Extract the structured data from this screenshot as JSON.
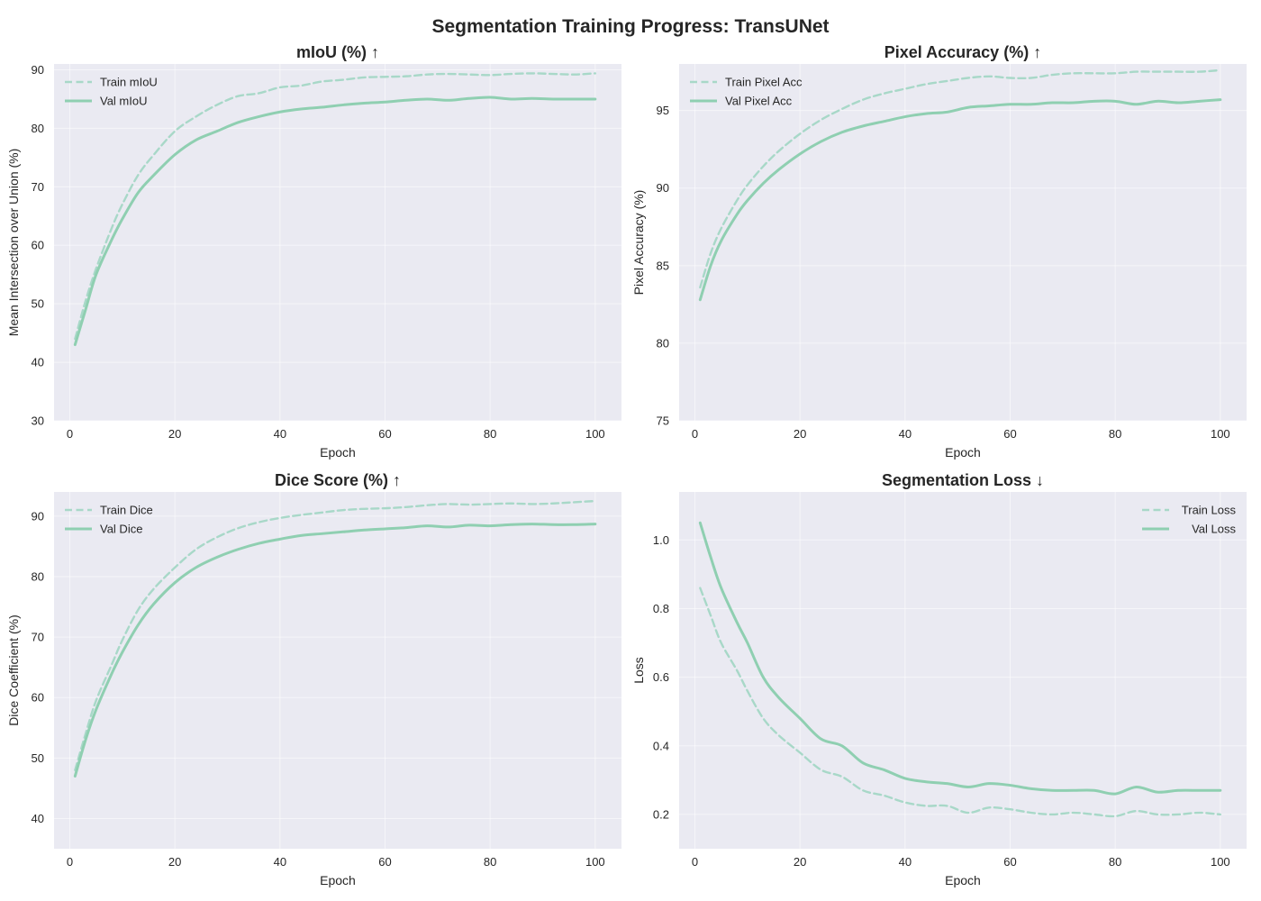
{
  "figure": {
    "suptitle": "Segmentation Training Progress: TransUNet"
  },
  "colors": {
    "train": "#a8d8c8",
    "val": "#8fcfb1",
    "plot_background": "#eaeaf2",
    "text": "#262626"
  },
  "chart_data": [
    {
      "type": "line",
      "title": "mIoU (%) ↑",
      "xlabel": "Epoch",
      "ylabel": "Mean Intersection over Union (%)",
      "xlim": [
        -3,
        105
      ],
      "ylim": [
        30,
        91
      ],
      "xticks": [
        0,
        20,
        40,
        60,
        80,
        100
      ],
      "yticks": [
        30,
        40,
        50,
        60,
        70,
        80,
        90
      ],
      "grid": true,
      "legend": "upper-left",
      "x": [
        1,
        3,
        5,
        8,
        10,
        13,
        16,
        20,
        24,
        28,
        32,
        36,
        40,
        44,
        48,
        52,
        56,
        60,
        64,
        68,
        72,
        76,
        80,
        84,
        88,
        92,
        96,
        100
      ],
      "series": [
        {
          "name": "Train mIoU",
          "style": "dashed",
          "values": [
            44,
            50.5,
            56,
            63,
            67,
            72,
            75.5,
            79.5,
            82,
            84,
            85.5,
            86,
            87,
            87.3,
            88,
            88.3,
            88.7,
            88.8,
            88.9,
            89.2,
            89.3,
            89.2,
            89.1,
            89.3,
            89.4,
            89.3,
            89.2,
            89.4
          ]
        },
        {
          "name": "Val mIoU",
          "style": "solid",
          "values": [
            43,
            49,
            55,
            61,
            64.5,
            69,
            72,
            75.5,
            78,
            79.5,
            81,
            82,
            82.8,
            83.3,
            83.6,
            84,
            84.3,
            84.5,
            84.8,
            85,
            84.8,
            85.1,
            85.3,
            85,
            85.1,
            85,
            85,
            85
          ]
        }
      ]
    },
    {
      "type": "line",
      "title": "Pixel Accuracy (%) ↑",
      "xlabel": "Epoch",
      "ylabel": "Pixel Accuracy (%)",
      "xlim": [
        -3,
        105
      ],
      "ylim": [
        75,
        98
      ],
      "xticks": [
        0,
        20,
        40,
        60,
        80,
        100
      ],
      "yticks": [
        75,
        80,
        85,
        90,
        95
      ],
      "grid": true,
      "legend": "upper-left",
      "x": [
        1,
        3,
        5,
        8,
        10,
        13,
        16,
        20,
        24,
        28,
        32,
        36,
        40,
        44,
        48,
        52,
        56,
        60,
        64,
        68,
        72,
        76,
        80,
        84,
        88,
        92,
        96,
        100
      ],
      "series": [
        {
          "name": "Train Pixel Acc",
          "style": "dashed",
          "values": [
            83.6,
            85.8,
            87.4,
            89.2,
            90.2,
            91.4,
            92.4,
            93.5,
            94.4,
            95.1,
            95.7,
            96.1,
            96.4,
            96.7,
            96.9,
            97.1,
            97.2,
            97.1,
            97.1,
            97.3,
            97.4,
            97.4,
            97.4,
            97.5,
            97.5,
            97.5,
            97.5,
            97.6
          ]
        },
        {
          "name": "Val Pixel Acc",
          "style": "solid",
          "values": [
            82.8,
            85,
            86.6,
            88.3,
            89.2,
            90.3,
            91.2,
            92.2,
            93,
            93.6,
            94,
            94.3,
            94.6,
            94.8,
            94.9,
            95.2,
            95.3,
            95.4,
            95.4,
            95.5,
            95.5,
            95.6,
            95.6,
            95.4,
            95.6,
            95.5,
            95.6,
            95.7
          ]
        }
      ]
    },
    {
      "type": "line",
      "title": "Dice Score (%) ↑",
      "xlabel": "Epoch",
      "ylabel": "Dice Coefficient (%)",
      "xlim": [
        -3,
        105
      ],
      "ylim": [
        35,
        94
      ],
      "xticks": [
        0,
        20,
        40,
        60,
        80,
        100
      ],
      "yticks": [
        40,
        50,
        60,
        70,
        80,
        90
      ],
      "grid": true,
      "legend": "upper-left",
      "x": [
        1,
        3,
        5,
        8,
        10,
        13,
        16,
        20,
        24,
        28,
        32,
        36,
        40,
        44,
        48,
        52,
        56,
        60,
        64,
        68,
        72,
        76,
        80,
        84,
        88,
        92,
        96,
        100
      ],
      "series": [
        {
          "name": "Train Dice",
          "style": "dashed",
          "values": [
            48,
            54,
            59.5,
            65.5,
            69.5,
            74.5,
            78,
            81.5,
            84.5,
            86.5,
            88,
            89,
            89.7,
            90.2,
            90.6,
            91,
            91.2,
            91.3,
            91.5,
            91.8,
            92,
            91.9,
            92,
            92.1,
            92,
            92.1,
            92.3,
            92.5
          ]
        },
        {
          "name": "Val Dice",
          "style": "solid",
          "values": [
            47,
            53,
            58,
            64,
            67.5,
            72,
            75.5,
            79,
            81.5,
            83.2,
            84.5,
            85.5,
            86.2,
            86.8,
            87.1,
            87.4,
            87.7,
            87.9,
            88.1,
            88.4,
            88.2,
            88.5,
            88.4,
            88.6,
            88.7,
            88.6,
            88.6,
            88.7
          ]
        }
      ]
    },
    {
      "type": "line",
      "title": "Segmentation Loss ↓",
      "xlabel": "Epoch",
      "ylabel": "Loss",
      "xlim": [
        -3,
        105
      ],
      "ylim": [
        0.1,
        1.14
      ],
      "xticks": [
        0,
        20,
        40,
        60,
        80,
        100
      ],
      "yticks": [
        0.2,
        0.4,
        0.6,
        0.8,
        1.0
      ],
      "ytick_labels": [
        "0.2",
        "0.4",
        "0.6",
        "0.8",
        "1.0"
      ],
      "grid": true,
      "legend": "upper-right",
      "x": [
        1,
        3,
        5,
        8,
        10,
        13,
        16,
        20,
        24,
        28,
        32,
        36,
        40,
        44,
        48,
        52,
        56,
        60,
        64,
        68,
        72,
        76,
        80,
        84,
        88,
        92,
        96,
        100
      ],
      "series": [
        {
          "name": "Train Loss",
          "style": "dashed",
          "values": [
            0.86,
            0.78,
            0.7,
            0.62,
            0.56,
            0.48,
            0.43,
            0.38,
            0.33,
            0.31,
            0.27,
            0.255,
            0.235,
            0.225,
            0.225,
            0.205,
            0.22,
            0.215,
            0.205,
            0.2,
            0.205,
            0.2,
            0.195,
            0.21,
            0.2,
            0.2,
            0.205,
            0.2
          ]
        },
        {
          "name": "Val Loss",
          "style": "solid",
          "values": [
            1.05,
            0.95,
            0.86,
            0.76,
            0.7,
            0.6,
            0.54,
            0.48,
            0.42,
            0.4,
            0.35,
            0.33,
            0.305,
            0.295,
            0.29,
            0.28,
            0.29,
            0.285,
            0.275,
            0.27,
            0.27,
            0.27,
            0.26,
            0.28,
            0.265,
            0.27,
            0.27,
            0.27
          ]
        }
      ]
    }
  ]
}
